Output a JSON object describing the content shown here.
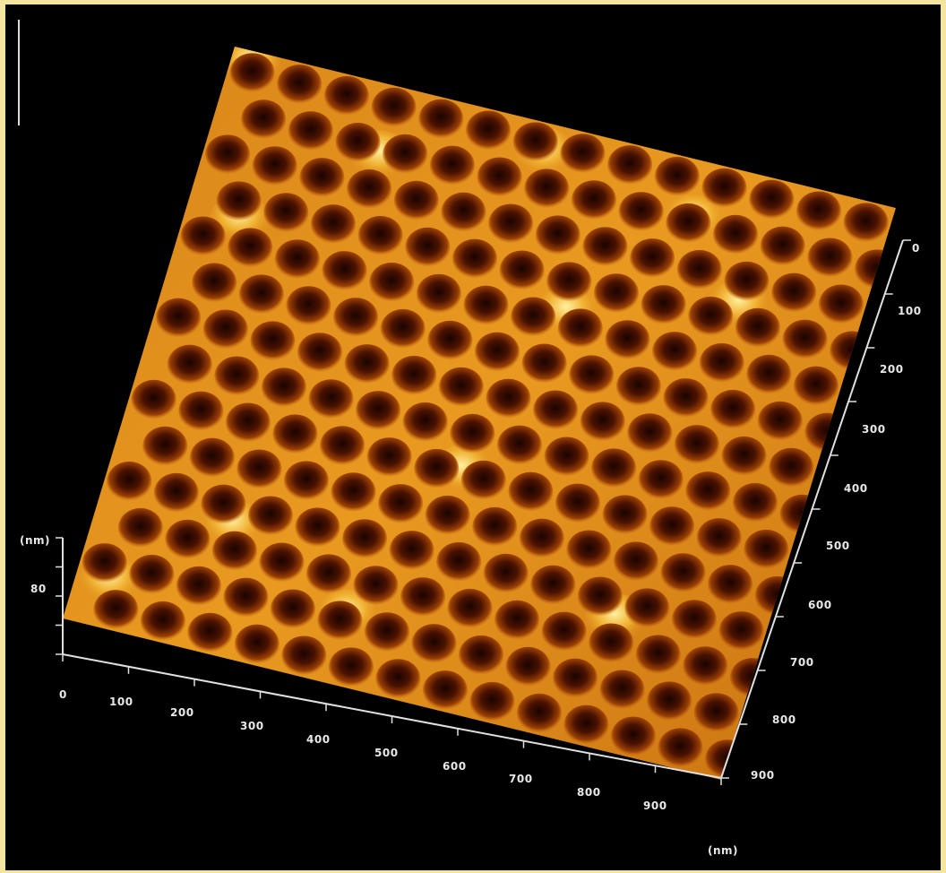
{
  "image": {
    "kind": "AFM 3D topography render of hexagonal pore array",
    "colors": {
      "frame": "#f4e4a0",
      "background": "#000000",
      "surface_low": "#5a1800",
      "surface_mid": "#c86a10",
      "surface_high": "#ffd860",
      "axis": "#e0e0e0"
    }
  },
  "axis_labels": {
    "z_unit": "(nm)",
    "z_tick_top": "80",
    "x_unit": "(nm)",
    "x_ticks": [
      "0",
      "100",
      "200",
      "300",
      "400",
      "500",
      "600",
      "700",
      "800",
      "900"
    ],
    "y_ticks": [
      "0",
      "100",
      "200",
      "300",
      "400",
      "500",
      "600",
      "700",
      "800",
      "900"
    ]
  }
}
